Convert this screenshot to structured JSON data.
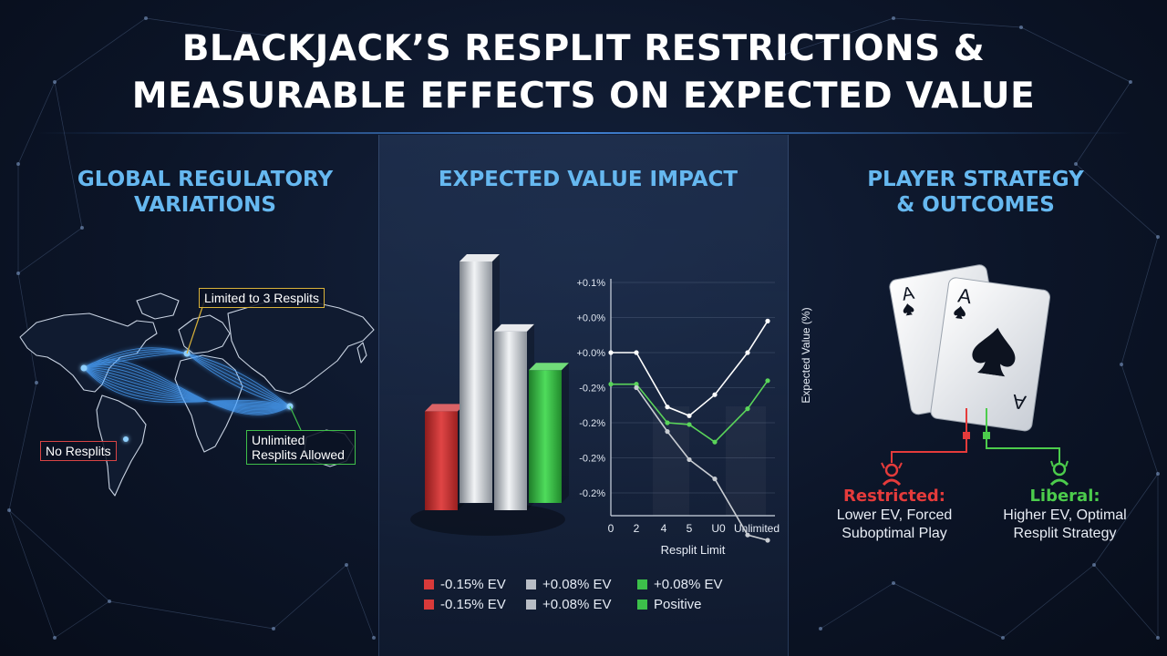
{
  "title": {
    "line1": "BLACKJACK’S RESPLIT RESTRICTIONS &",
    "line2": "MEASURABLE EFFECTS ON EXPECTED VALUE"
  },
  "sections": {
    "left": {
      "heading_line1": "GLOBAL REGULATORY",
      "heading_line2": "VARIATIONS"
    },
    "middle": {
      "heading": "EXPECTED VALUE IMPACT"
    },
    "right": {
      "heading_line1": "PLAYER STRATEGY",
      "heading_line2": "& OUTCOMES"
    }
  },
  "map": {
    "labels": {
      "limited": "Limited to 3 Resplits",
      "none": "No Resplits",
      "unlimited": "Unlimited Resplits Allowed"
    },
    "colors": {
      "limited": "#d9b23a",
      "none": "#d94545",
      "unlimited": "#3fbf4a",
      "flows": "#4aa3ff"
    }
  },
  "chart_data": [
    {
      "type": "bar",
      "style": "3d",
      "bars": [
        {
          "color": "#d93a3a",
          "relative_height": 0.41
        },
        {
          "color": "#c8ccd2",
          "relative_height": 1.0
        },
        {
          "color": "#c8ccd2",
          "relative_height": 0.74
        },
        {
          "color": "#3cc04a",
          "relative_height": 0.55
        }
      ]
    },
    {
      "type": "line",
      "xlabel": "Resplit Limit",
      "ylabel": "Expected Value (%)",
      "x_ticks": [
        "0",
        "2",
        "4",
        "5",
        "U0",
        "Unlimited"
      ],
      "y_ticks": [
        "+0.1%",
        "+0.0%",
        "+0.0%",
        "-0.2%",
        "-0.2%",
        "-0.2%",
        "-0.2%"
      ],
      "series": [
        {
          "color": "#ffffff",
          "points": [
            [
              0,
              2
            ],
            [
              1,
              2
            ],
            [
              2,
              3.55
            ],
            [
              3,
              3.8
            ],
            [
              4,
              3.2
            ],
            [
              5,
              2
            ],
            [
              6,
              1.1
            ]
          ]
        },
        {
          "color": "#5ad45a",
          "points": [
            [
              0,
              2.9
            ],
            [
              1,
              2.9
            ],
            [
              2,
              4
            ],
            [
              3,
              4.05
            ],
            [
              4,
              4.55
            ],
            [
              5,
              3.6
            ],
            [
              6,
              2.8
            ]
          ]
        },
        {
          "color": "#c8ccd2",
          "points": [
            [
              1,
              3
            ],
            [
              2,
              4.25
            ],
            [
              3,
              5.05
            ],
            [
              4,
              5.6
            ],
            [
              5,
              7.2
            ],
            [
              6,
              7.35
            ]
          ]
        }
      ]
    }
  ],
  "legend": [
    [
      {
        "label": "-0.15% EV",
        "color": "#d93a3a"
      },
      {
        "label": "+0.08% EV",
        "color": "#b8bdc5"
      },
      {
        "label": "+0.08% EV",
        "color": "#3cc04a"
      }
    ],
    [
      {
        "label": "-0.15% EV",
        "color": "#d93a3a"
      },
      {
        "label": "+0.08% EV",
        "color": "#b8bdc5"
      },
      {
        "label": "Positive",
        "color": "#3cc04a"
      }
    ]
  ],
  "cards": {
    "rank": "A",
    "suit": "spade-icon"
  },
  "outcomes": {
    "restricted": {
      "head": "Restricted:",
      "line1": "Lower EV, Forced",
      "line2": "Suboptimal Play",
      "color": "#e53b3b"
    },
    "liberal": {
      "head": "Liberal:",
      "line1": "Higher EV, Optimal",
      "line2": "Resplit Strategy",
      "color": "#4ccc4c"
    }
  }
}
